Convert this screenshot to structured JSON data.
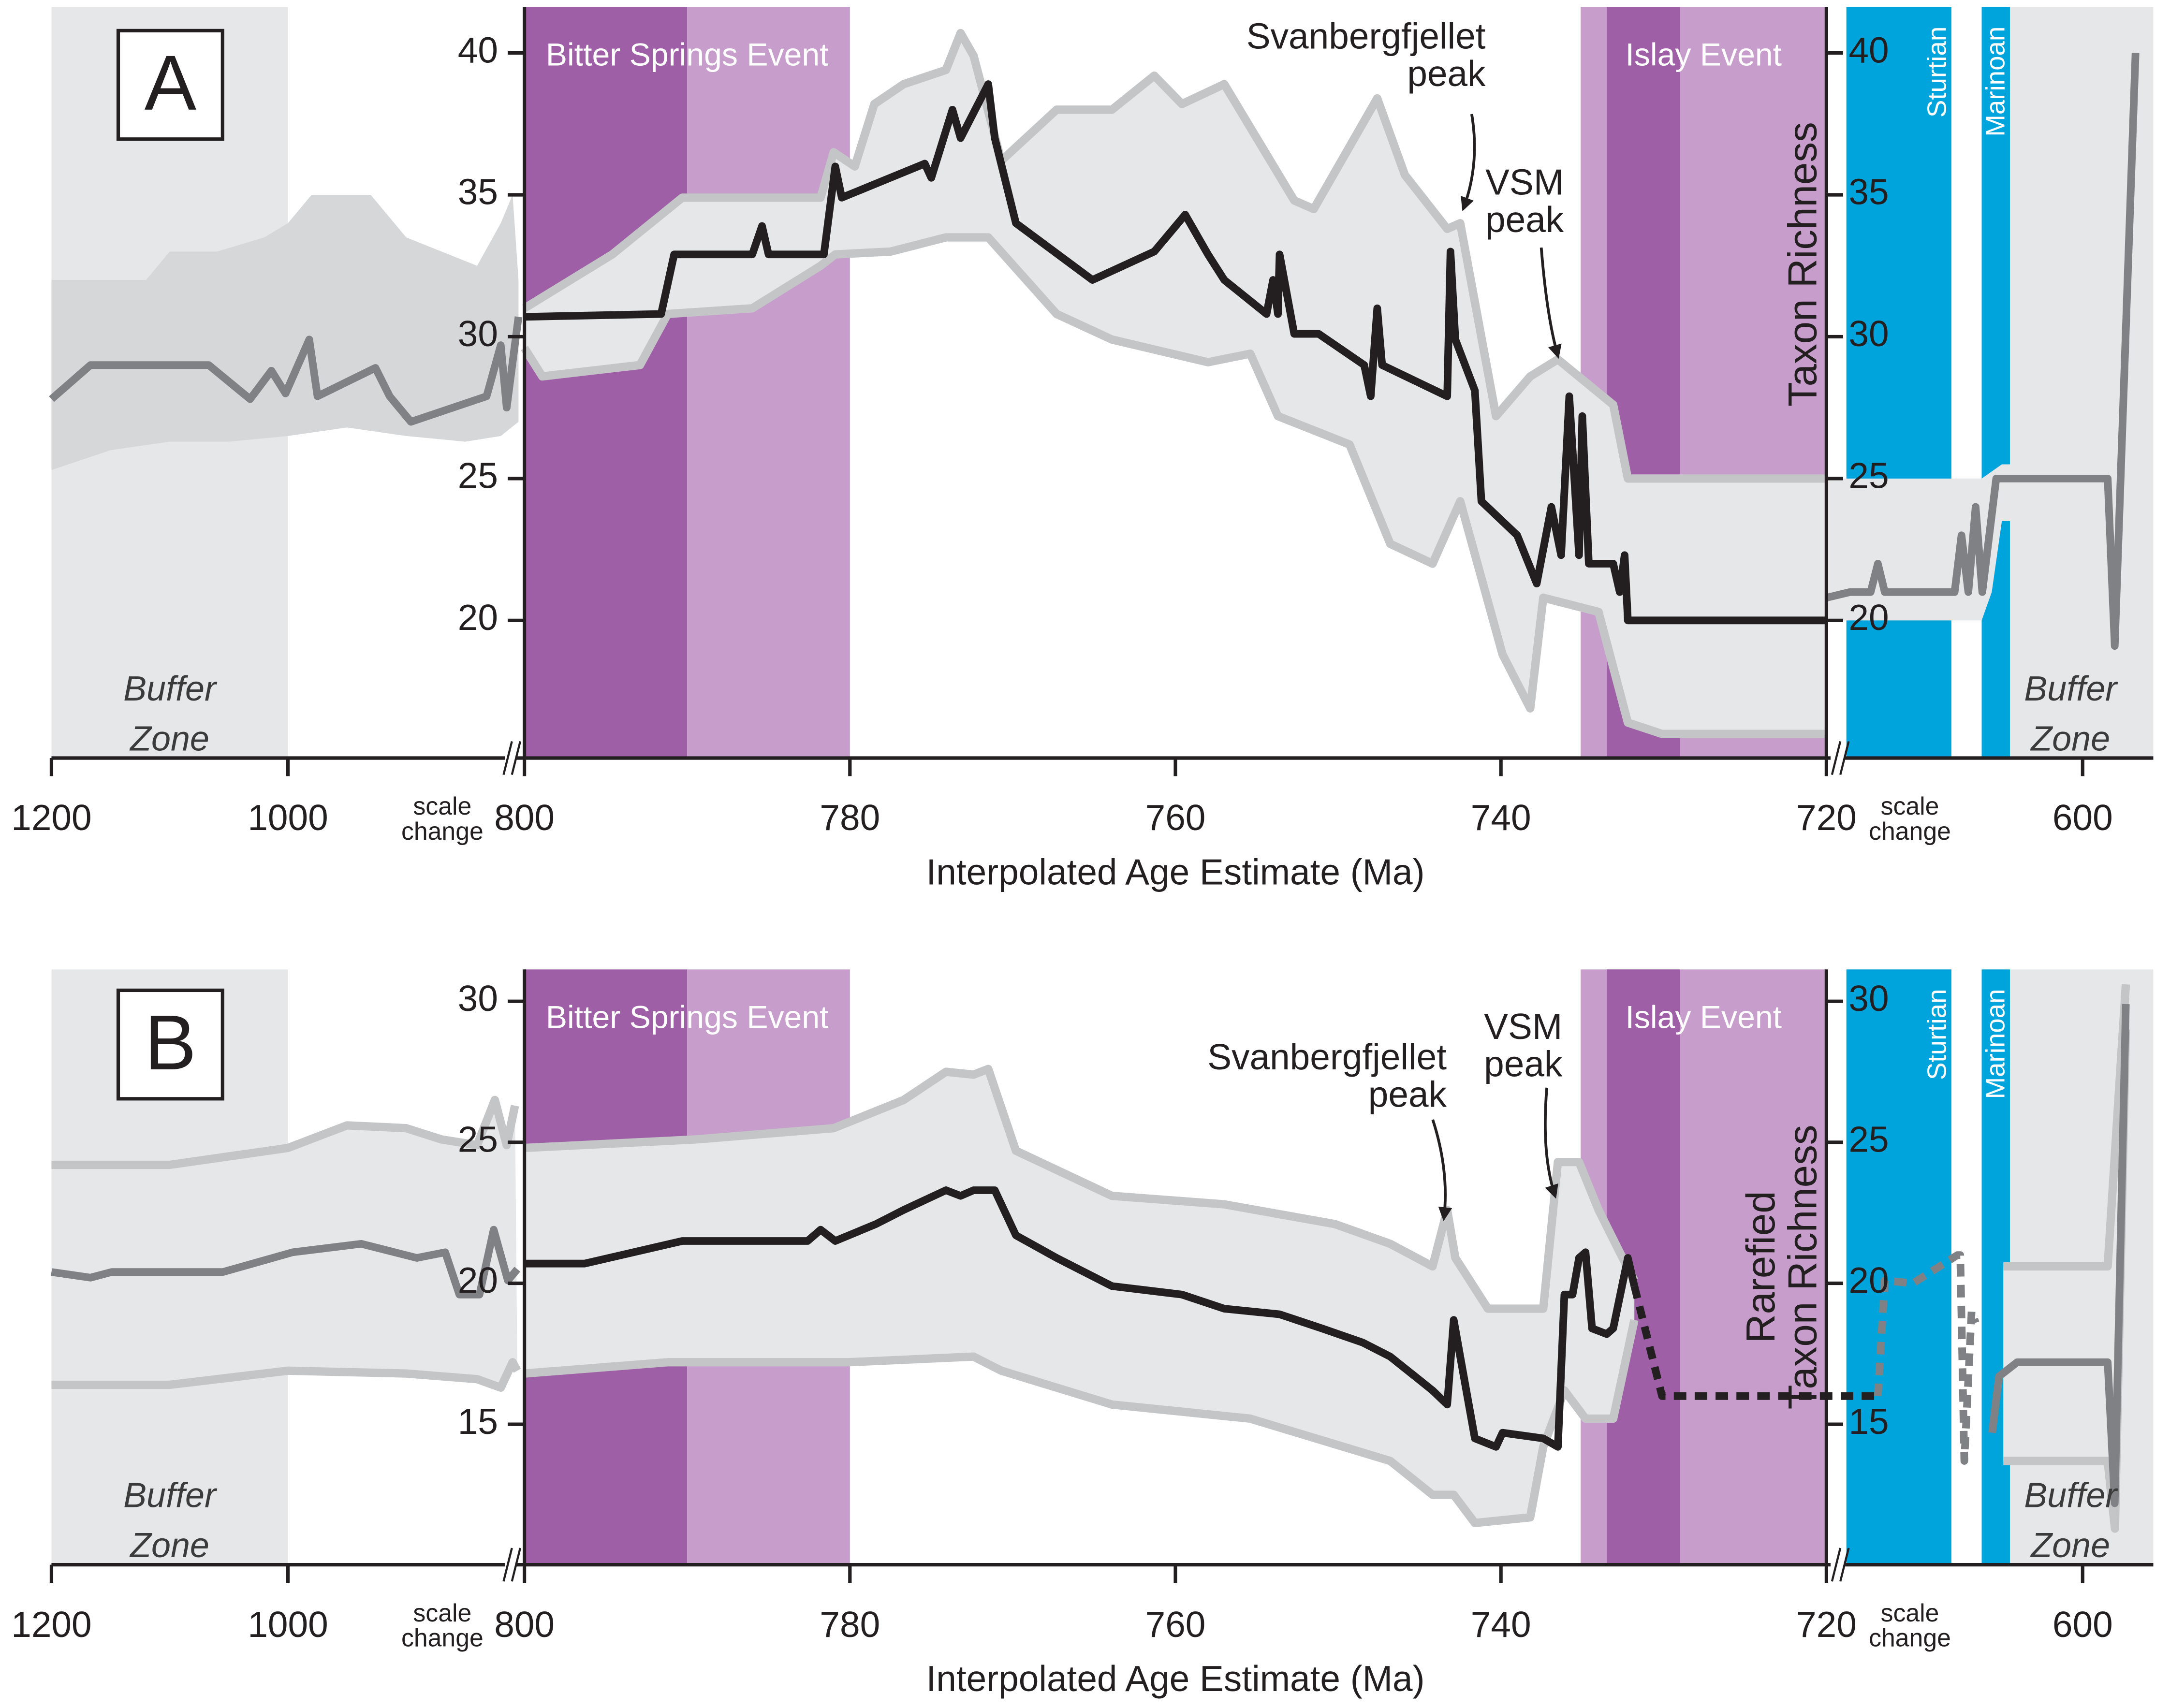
{
  "chart_data": [
    {
      "type": "line",
      "panel_label": "A",
      "xlabel": "Interpolated Age Estimate (Ma)",
      "ylabel": [
        "Taxon Richness"
      ],
      "xlim": [
        1200,
        565
      ],
      "x_breaks": [
        800,
        720
      ],
      "xticks": [
        1200,
        1000,
        800,
        780,
        760,
        740,
        720,
        600
      ],
      "ylim": [
        15.15,
        41.62
      ],
      "yticks": [
        20,
        25,
        30,
        35,
        40
      ],
      "scale_change": [
        "scale",
        "change"
      ],
      "buffer_zones": {
        "label": [
          "Buffer",
          "Zone"
        ],
        "color": "#e6e7e8",
        "ranges": [
          [
            1200,
            1000
          ],
          [
            636,
            565
          ]
        ]
      },
      "events": [
        {
          "label": "Bitter Springs Event",
          "bands": [
            {
              "from": 800,
              "to": 790,
              "color": "#9e5fa6"
            },
            {
              "from": 790,
              "to": 780,
              "color": "#c79dcb"
            }
          ]
        },
        {
          "label": "Islay Event",
          "bands": [
            {
              "from": 735.1,
              "to": 720,
              "color": "#c79dcb"
            },
            {
              "from": 733.5,
              "to": 729,
              "color": "#9e5fa6"
            }
          ]
        }
      ],
      "glaciations": [
        {
          "label": "Sturtian",
          "from": 717,
          "to": 665,
          "color": "#00a4dc"
        },
        {
          "label": "Marinoan",
          "from": 650,
          "to": 636,
          "color": "#00a4dc"
        }
      ],
      "annotations": [
        {
          "lines": [
            "Svanbergfjellet",
            "peak"
          ]
        },
        {
          "lines": [
            "VSM",
            "peak"
          ]
        }
      ],
      "intervals": [
        {
          "fill": "#d6d7d9",
          "stroke": null,
          "upper": {
            "x": [
              1200,
              1120,
              1100,
              1060,
              1020,
              1000,
              980,
              950,
              930,
              900,
              870,
              840,
              820,
              810,
              805
            ],
            "values": [
              32,
              32,
              33,
              33,
              33.5,
              34,
              35,
              35,
              35,
              33.5,
              33,
              32.5,
              34,
              35,
              32
            ]
          },
          "lower": {
            "x": [
              1200,
              1150,
              1100,
              1050,
              1000,
              950,
              900,
              850,
              820,
              805
            ],
            "values": [
              25.3,
              26,
              26.3,
              26.3,
              26.5,
              26.8,
              26.5,
              26.3,
              26.5,
              27
            ]
          }
        },
        {
          "fill": "#e6e7e8",
          "stroke": "#c4c5c7",
          "upper": {
            "x": [
              800,
              794.6,
              790.3,
              781.8,
              781,
              779.7,
              778.5,
              776.7,
              774.1,
              773.2,
              772.4,
              770.7,
              767.3,
              763.9,
              761.3,
              759.6,
              757,
              752.7,
              751.5,
              749.3,
              747.6,
              745.9,
              743.3,
              742.5,
              740.3,
              738.2,
              736.5,
              733.1,
              732.2,
              720
            ],
            "values": [
              31,
              32.9,
              34.9,
              34.9,
              36.5,
              36,
              38.2,
              38.9,
              39.4,
              40.7,
              39.9,
              36.2,
              38,
              38,
              39.2,
              38.2,
              38.9,
              34.8,
              34.5,
              36.7,
              38.4,
              35.7,
              33.8,
              34,
              27.2,
              28.6,
              29.2,
              27.6,
              25,
              25
            ]
          },
          "lower": {
            "x": [
              800,
              798.9,
              792.9,
              791.2,
              786,
              781.8,
              780.9,
              777.5,
              774.1,
              771.5,
              767.3,
              763.9,
              758,
              755.4,
              753.7,
              749.3,
              746.8,
              744.2,
              742.5,
              739.9,
              738.2,
              737.4,
              734,
              732.2,
              730.1,
              720
            ],
            "values": [
              29.6,
              28.6,
              29,
              30.8,
              31,
              32.5,
              32.9,
              33,
              33.5,
              33.5,
              30.8,
              29.9,
              29.1,
              29.4,
              27.2,
              26.2,
              22.7,
              22,
              24.2,
              18.8,
              16.9,
              20.8,
              20.3,
              16.4,
              16,
              16
            ]
          }
        },
        {
          "fill": "#e6e7e8",
          "stroke": null,
          "upper": {
            "x": [
              720,
              650,
              640,
              588,
              574
            ],
            "values": [
              25,
              25,
              25.5,
              25.5,
              40
            ]
          },
          "lower": {
            "x": [
              720,
              650,
              645,
              640,
              588,
              584,
              574
            ],
            "values": [
              20,
              20,
              21,
              23.5,
              23.5,
              19,
              39
            ]
          }
        }
      ],
      "series": [
        {
          "color": "#808184",
          "x": [
            1200,
            1167,
            1067,
            1032,
            1014,
            1002,
            982,
            975,
            926,
            914,
            896,
            832,
            820,
            815,
            805
          ],
          "values": [
            27.8,
            29,
            29,
            27.8,
            28.8,
            28,
            29.9,
            27.9,
            28.9,
            27.9,
            27,
            27.9,
            29.7,
            27.5,
            30.7
          ]
        },
        {
          "color": "#231f20",
          "x": [
            800,
            791.6,
            790.8,
            786,
            785.4,
            785,
            781.6,
            780.9,
            780.5,
            775.4,
            775,
            773.7,
            773.2,
            771.5,
            771.1,
            769.8,
            765.1,
            761.3,
            759.4,
            758,
            757,
            754.4,
            754,
            753.7,
            753.6,
            752.7,
            751.2,
            748.4,
            748,
            747.6,
            747.3,
            743.3,
            743.1,
            742.8,
            741.6,
            741.2,
            739,
            737.8,
            736.9,
            736.3,
            735.8,
            735.2,
            735,
            734.6,
            733.1,
            732.7,
            732.4,
            732.2,
            720
          ],
          "values": [
            30.7,
            30.8,
            32.9,
            32.9,
            33.9,
            32.9,
            32.9,
            36,
            34.9,
            36.1,
            35.6,
            38,
            37,
            38.9,
            37,
            34,
            32,
            33,
            34.3,
            32.9,
            32,
            30.8,
            32,
            30.8,
            32.9,
            30.1,
            30.1,
            29,
            27.9,
            31,
            29,
            27.9,
            33,
            29.9,
            28.1,
            24.2,
            23,
            21.3,
            24,
            22.3,
            27.9,
            22.3,
            27.2,
            22,
            22,
            21,
            22.3,
            20,
            20
          ]
        },
        {
          "color": "#808184",
          "x": [
            720,
            715.2,
            705,
            701.4,
            698,
            663.4,
            660,
            656.6,
            653,
            649.7,
            642.8,
            587.6,
            584.1,
            573.8
          ],
          "values": [
            20.8,
            21,
            21,
            22,
            21,
            21,
            23,
            21,
            24,
            21,
            25,
            25,
            19.1,
            40
          ]
        }
      ]
    },
    {
      "type": "line",
      "panel_label": "B",
      "xlabel": "Interpolated Age Estimate (Ma)",
      "ylabel": [
        "Rarefied",
        "Taxon Richness"
      ],
      "xlim": [
        1200,
        565
      ],
      "x_breaks": [
        800,
        720
      ],
      "xticks": [
        1200,
        1000,
        800,
        780,
        760,
        740,
        720,
        600
      ],
      "ylim": [
        10.02,
        31.13
      ],
      "yticks": [
        15,
        20,
        25,
        30
      ],
      "scale_change": [
        "scale",
        "change"
      ],
      "buffer_zones": {
        "label": [
          "Buffer",
          "Zone"
        ],
        "color": "#e6e7e8",
        "ranges": [
          [
            1200,
            1000
          ],
          [
            636,
            565
          ]
        ]
      },
      "events": [
        {
          "label": "Bitter Springs Event",
          "bands": [
            {
              "from": 800,
              "to": 790,
              "color": "#9e5fa6"
            },
            {
              "from": 790,
              "to": 780,
              "color": "#c79dcb"
            }
          ]
        },
        {
          "label": "Islay Event",
          "bands": [
            {
              "from": 735.1,
              "to": 720,
              "color": "#c79dcb"
            },
            {
              "from": 733.5,
              "to": 729,
              "color": "#9e5fa6"
            }
          ]
        }
      ],
      "glaciations": [
        {
          "label": "Sturtian",
          "from": 717,
          "to": 665,
          "color": "#00a4dc"
        },
        {
          "label": "Marinoan",
          "from": 650,
          "to": 636,
          "color": "#00a4dc"
        }
      ],
      "annotations": [
        {
          "lines": [
            "Svanbergfjellet",
            "peak"
          ]
        },
        {
          "lines": [
            "VSM",
            "peak"
          ]
        }
      ],
      "intervals": [
        {
          "fill": "#e6e7e8",
          "stroke": "#c4c5c7",
          "upper": {
            "x": [
              1200,
              1100,
              1000,
              950,
              900,
              870,
              840,
              825,
              815,
              808
            ],
            "values": [
              24.2,
              24.2,
              24.8,
              25.6,
              25.5,
              25.1,
              24.9,
              26.5,
              24.9,
              26.3
            ]
          },
          "lower": {
            "x": [
              1200,
              1100,
              1000,
              900,
              840,
              820,
              810,
              806
            ],
            "values": [
              16.4,
              16.4,
              16.9,
              16.8,
              16.6,
              16.3,
              17.2,
              16.9
            ]
          }
        },
        {
          "fill": "#e6e7e8",
          "stroke": "#c4c5c7",
          "upper": {
            "x": [
              800,
              789.5,
              781,
              776.7,
              774.1,
              772.4,
              771.5,
              769.8,
              763.9,
              757,
              750.2,
              746.8,
              744.2,
              743.3,
              742.8,
              740.8,
              737.4,
              736.5,
              735.2,
              734,
              732.7,
              731.8
            ],
            "values": [
              24.8,
              25.1,
              25.5,
              26.5,
              27.5,
              27.4,
              27.6,
              24.7,
              23.1,
              22.8,
              22.1,
              21.4,
              20.6,
              22.6,
              20.9,
              19.1,
              19.1,
              24.3,
              24.3,
              22.6,
              21.1,
              20.1
            ]
          },
          "lower": {
            "x": [
              800,
              791.2,
              780.1,
              772.4,
              770.7,
              763.9,
              755.4,
              746.8,
              744.2,
              742.9,
              741.6,
              738.2,
              737.4,
              736.1,
              734.8,
              733.1,
              731.8
            ],
            "values": [
              16.8,
              17.2,
              17.2,
              17.4,
              16.9,
              15.7,
              15.2,
              13.7,
              12.5,
              12.5,
              11.5,
              11.7,
              14.2,
              16.2,
              15.2,
              15.2,
              18.7
            ]
          }
        },
        {
          "fill": "#e6e7e8",
          "stroke": "#c4c5c7",
          "upper": {
            "x": [
              639.3,
              587.6,
              578.6
            ],
            "values": [
              20.6,
              20.6,
              30.6
            ]
          },
          "lower": {
            "x": [
              639.3,
              587.6,
              584,
              578.6
            ],
            "values": [
              13.7,
              13.7,
              11.3,
              29
            ]
          }
        }
      ],
      "series": [
        {
          "color": "#808184",
          "x": [
            1200,
            1167,
            1149,
            1055,
            996,
            938,
            891,
            867,
            855,
            838,
            826,
            814,
            806
          ],
          "values": [
            20.4,
            20.2,
            20.4,
            20.4,
            21.1,
            21.4,
            20.9,
            21.1,
            19.6,
            19.6,
            21.9,
            20.1,
            20.5
          ]
        },
        {
          "color": "#231f20",
          "x": [
            800,
            796.3,
            790.3,
            782.6,
            781.8,
            780.9,
            778.4,
            776.7,
            774.1,
            773.2,
            772.4,
            771.1,
            769.8,
            767.3,
            763.9,
            759.6,
            757,
            753.6,
            751,
            748.5,
            746.8,
            744.2,
            743.3,
            742.9,
            742.5,
            741.6,
            740.3,
            739.9,
            737.4,
            736.5,
            736.1,
            735.6,
            735.2,
            734.8,
            734.4,
            733.5,
            733.1,
            732.2,
            731.8
          ],
          "values": [
            20.7,
            20.7,
            21.5,
            21.5,
            21.9,
            21.5,
            22.1,
            22.6,
            23.3,
            23.1,
            23.3,
            23.3,
            21.7,
            20.9,
            19.9,
            19.6,
            19.1,
            18.9,
            18.4,
            17.9,
            17.4,
            16.2,
            15.7,
            18.7,
            17.4,
            14.5,
            14.2,
            14.7,
            14.5,
            14.2,
            19.6,
            19.6,
            20.9,
            21.1,
            18.4,
            18.2,
            18.4,
            20.9,
            19.9
          ]
        },
        {
          "color": "#231f20",
          "dashed": true,
          "x": [
            731.8,
            730.1,
            701.4
          ],
          "values": [
            19.9,
            16,
            16
          ]
        },
        {
          "color": "#808184",
          "dashed": true,
          "x": [
            701.4,
            698,
            684,
            662,
            660.6,
            658.6,
            655,
            653
          ],
          "values": [
            16,
            20.1,
            20,
            21,
            21,
            13.7,
            19,
            18.6
          ]
        },
        {
          "color": "#808184",
          "x": [
            644.8,
            641.4,
            632.4,
            587.6,
            584.1,
            578.6
          ],
          "values": [
            14.7,
            16.7,
            17.2,
            17.2,
            12.2,
            29.9
          ]
        }
      ]
    }
  ]
}
